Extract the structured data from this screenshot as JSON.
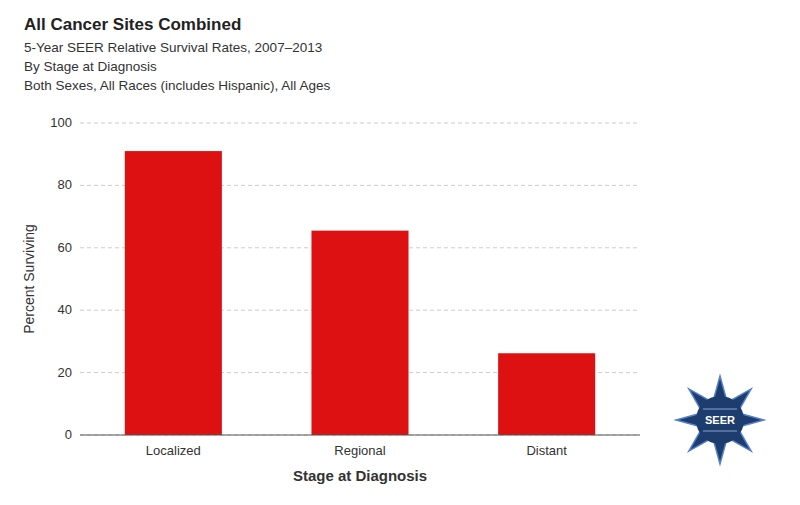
{
  "chart_data": {
    "type": "bar",
    "title": "All Cancer Sites Combined",
    "subtitle": [
      "5-Year SEER Relative Survival Rates, 2007–2013",
      "By Stage at Diagnosis",
      "Both Sexes, All Races (includes Hispanic), All Ages"
    ],
    "x_label": "Stage at Diagnosis",
    "y_label": "Percent Surviving",
    "categories": [
      "Localized",
      "Regional",
      "Distant"
    ],
    "values": [
      91,
      65.5,
      26.2
    ],
    "color": "#dd1111",
    "ylim": [
      0,
      100
    ],
    "yticks": [
      0,
      20,
      40,
      60,
      80,
      100
    ],
    "grid": true,
    "annotations": [
      "SEER"
    ]
  }
}
